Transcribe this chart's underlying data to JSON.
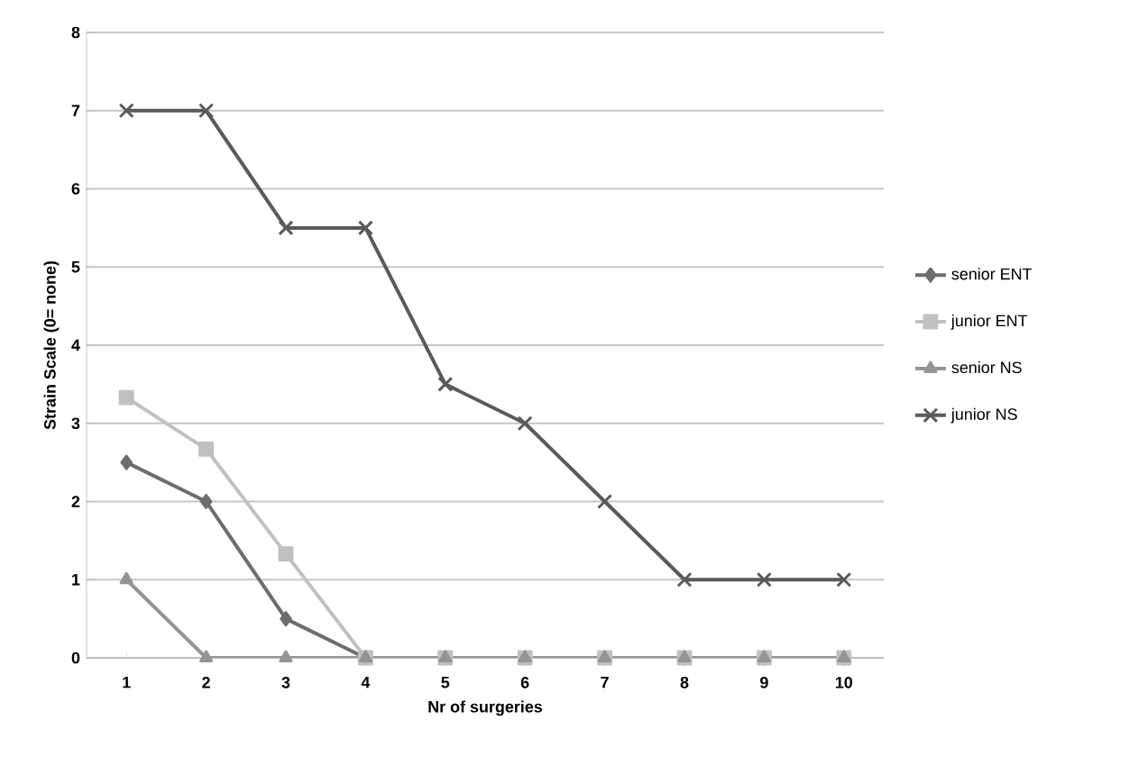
{
  "chart_data": {
    "type": "line",
    "xlabel": "Nr of surgeries",
    "ylabel": "Strain Scale (0= none)",
    "categories": [
      "1",
      "2",
      "3",
      "4",
      "5",
      "6",
      "7",
      "8",
      "9",
      "10"
    ],
    "series": [
      {
        "name": "senior ENT",
        "color": "#6d6d6d",
        "marker": "diamond",
        "values": [
          2.5,
          2,
          0.5,
          0,
          0,
          0,
          0,
          0,
          0,
          0
        ]
      },
      {
        "name": "junior ENT",
        "color": "#c0c0c0",
        "marker": "square",
        "values": [
          3.33,
          2.67,
          1.33,
          0,
          0,
          0,
          0,
          0,
          0,
          0
        ]
      },
      {
        "name": "senior NS",
        "color": "#949494",
        "marker": "triangle",
        "values": [
          1,
          0,
          0,
          0,
          0,
          0,
          0,
          0,
          0,
          0
        ]
      },
      {
        "name": "junior NS",
        "color": "#5a5a5a",
        "marker": "cross",
        "values": [
          7,
          7,
          5.5,
          5.5,
          3.5,
          3,
          2,
          1,
          1,
          1
        ]
      }
    ],
    "ylim": [
      0,
      8
    ],
    "yticks": [
      0,
      1,
      2,
      3,
      4,
      5,
      6,
      7,
      8
    ],
    "grid": "y",
    "legend": "right"
  }
}
